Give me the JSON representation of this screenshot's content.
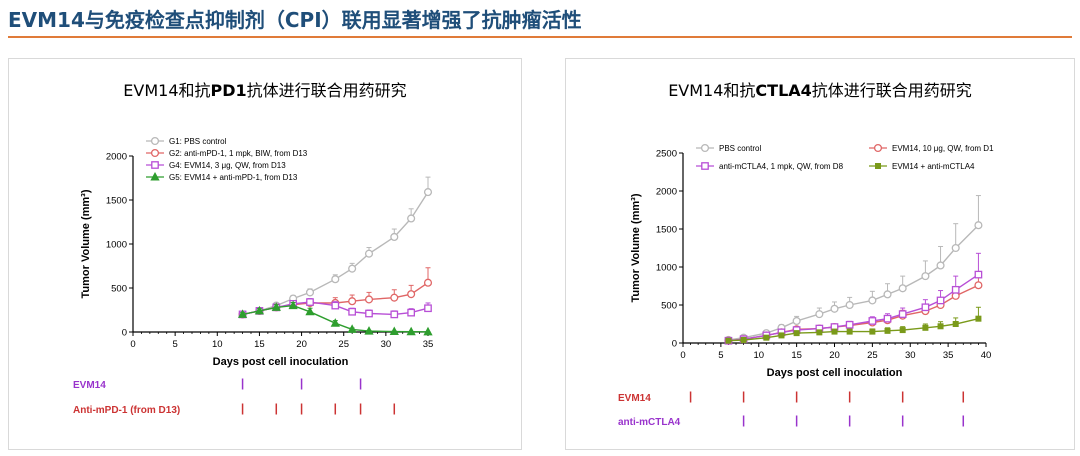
{
  "page_title": "EVM14与免疫检查点抑制剂（CPI）联用显著增强了抗肿瘤活性",
  "chart_data": [
    {
      "type": "line",
      "title_prefix": "EVM14和抗",
      "title_bold": "PD1",
      "title_suffix": "抗体进行联合用药研究",
      "xlabel": "Days post cell inoculation",
      "ylabel": "Tumor Volume (mm³)",
      "xlim": [
        0,
        35
      ],
      "ylim": [
        0,
        2000
      ],
      "xticks": [
        0,
        5,
        10,
        15,
        20,
        25,
        30,
        35
      ],
      "yticks": [
        0,
        500,
        1000,
        1500,
        2000
      ],
      "legend_position": "top-left",
      "series": [
        {
          "name": "G1: PBS control",
          "color": "#b8b8b8",
          "marker": "circle",
          "x": [
            13,
            15,
            17,
            19,
            21,
            24,
            26,
            28,
            31,
            33,
            35
          ],
          "y": [
            200,
            240,
            300,
            380,
            450,
            600,
            720,
            890,
            1080,
            1290,
            1590
          ],
          "err": [
            20,
            25,
            30,
            35,
            40,
            50,
            60,
            70,
            90,
            110,
            170
          ]
        },
        {
          "name": "G2: anti-mPD-1, 1 mpk, BIW,  from D13",
          "color": "#e06666",
          "marker": "circle",
          "x": [
            13,
            15,
            17,
            19,
            21,
            24,
            26,
            28,
            31,
            33,
            35
          ],
          "y": [
            200,
            240,
            280,
            310,
            330,
            330,
            350,
            370,
            390,
            430,
            560
          ],
          "err": [
            20,
            25,
            30,
            35,
            40,
            60,
            70,
            80,
            90,
            100,
            170
          ]
        },
        {
          "name": "G4: EVM14, 3 μg, QW, from D13",
          "color": "#b84fd6",
          "marker": "square",
          "x": [
            13,
            15,
            17,
            19,
            21,
            24,
            26,
            28,
            31,
            33,
            35
          ],
          "y": [
            200,
            240,
            280,
            320,
            340,
            300,
            230,
            210,
            200,
            220,
            270
          ],
          "err": [
            20,
            25,
            30,
            35,
            40,
            45,
            40,
            40,
            40,
            45,
            60
          ]
        },
        {
          "name": "G5: EVM14 + anti-mPD-1, from D13",
          "color": "#2e9e2e",
          "marker": "triangle",
          "x": [
            13,
            15,
            17,
            19,
            21,
            24,
            26,
            28,
            31,
            33,
            35
          ],
          "y": [
            200,
            240,
            280,
            300,
            230,
            100,
            30,
            10,
            5,
            3,
            2
          ],
          "err": [
            20,
            25,
            30,
            35,
            40,
            30,
            15,
            8,
            5,
            3,
            2
          ]
        }
      ],
      "schedule": [
        {
          "label": "EVM14",
          "color": "#9933cc",
          "days": [
            13,
            20,
            27
          ]
        },
        {
          "label": "Anti-mPD-1 (from D13)",
          "color": "#cc3333",
          "days": [
            13,
            17,
            20,
            24,
            27,
            31
          ]
        }
      ]
    },
    {
      "type": "line",
      "title_prefix": "EVM14和抗",
      "title_bold": "CTLA4",
      "title_suffix": "抗体进行联合用药研究",
      "xlabel": "Days post cell inoculation",
      "ylabel": "Tumor Volume (mm³)",
      "xlim": [
        0,
        40
      ],
      "ylim": [
        0,
        2500
      ],
      "xticks": [
        0,
        5,
        10,
        15,
        20,
        25,
        30,
        35,
        40
      ],
      "yticks": [
        0,
        500,
        1000,
        1500,
        2000,
        2500
      ],
      "legend_position": "top",
      "series": [
        {
          "name": "PBS control",
          "color": "#b8b8b8",
          "marker": "circle",
          "x": [
            6,
            8,
            11,
            13,
            15,
            18,
            20,
            22,
            25,
            27,
            29,
            32,
            34,
            36,
            39
          ],
          "y": [
            40,
            70,
            130,
            200,
            290,
            380,
            450,
            500,
            560,
            640,
            720,
            880,
            1020,
            1250,
            1550
          ],
          "err": [
            10,
            15,
            25,
            40,
            60,
            80,
            90,
            100,
            120,
            140,
            160,
            200,
            250,
            320,
            390
          ]
        },
        {
          "name": "EVM14, 10 μg, QW, from D1",
          "color": "#e06666",
          "marker": "circle",
          "x": [
            6,
            8,
            11,
            13,
            15,
            18,
            20,
            22,
            25,
            27,
            29,
            32,
            34,
            36,
            39
          ],
          "y": [
            30,
            50,
            100,
            140,
            180,
            190,
            210,
            230,
            270,
            300,
            360,
            420,
            500,
            620,
            760
          ],
          "err": [
            8,
            10,
            20,
            25,
            30,
            35,
            40,
            45,
            50,
            60,
            70,
            80,
            90,
            100,
            120
          ]
        },
        {
          "name": "anti-mCTLA4, 1 mpk, QW, from D8",
          "color": "#b84fd6",
          "marker": "square",
          "x": [
            6,
            8,
            11,
            13,
            15,
            18,
            20,
            22,
            25,
            27,
            29,
            32,
            34,
            36,
            39
          ],
          "y": [
            30,
            50,
            100,
            140,
            170,
            190,
            210,
            240,
            290,
            320,
            380,
            470,
            560,
            700,
            900
          ],
          "err": [
            8,
            10,
            20,
            25,
            30,
            35,
            40,
            45,
            55,
            65,
            80,
            100,
            130,
            180,
            280
          ]
        },
        {
          "name": "EVM14 + anti-mCTLA4",
          "color": "#7a9a1a",
          "marker": "square",
          "x": [
            6,
            8,
            11,
            13,
            15,
            18,
            20,
            22,
            25,
            27,
            29,
            32,
            34,
            36,
            39
          ],
          "y": [
            30,
            40,
            70,
            100,
            130,
            140,
            150,
            150,
            150,
            160,
            170,
            200,
            220,
            250,
            320
          ],
          "err": [
            8,
            10,
            15,
            20,
            25,
            30,
            30,
            30,
            35,
            40,
            45,
            50,
            60,
            80,
            150
          ]
        }
      ],
      "schedule": [
        {
          "label": "EVM14",
          "color": "#cc3333",
          "days": [
            1,
            8,
            15,
            22,
            29,
            37
          ]
        },
        {
          "label": "anti-mCTLA4",
          "color": "#9933cc",
          "days": [
            8,
            15,
            22,
            29,
            37
          ]
        }
      ]
    }
  ]
}
